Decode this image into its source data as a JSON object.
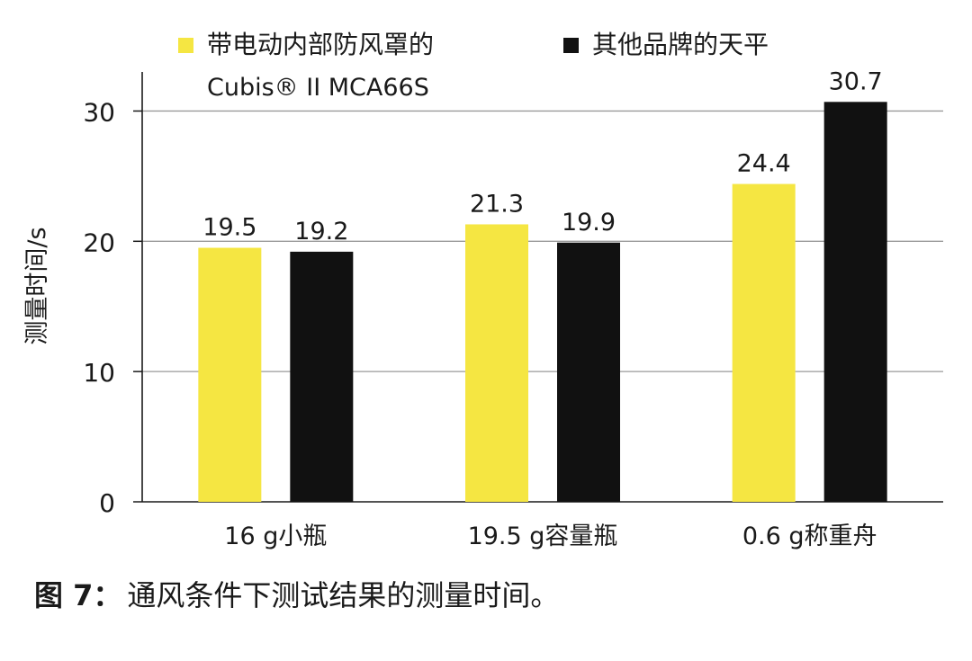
{
  "chart_data": {
    "type": "bar",
    "ylabel": "测量时间/s",
    "xlabel": "",
    "ylim": [
      0,
      33
    ],
    "yticks": [
      0,
      10,
      20,
      30
    ],
    "grid": true,
    "categories": [
      "16 g小瓶",
      "19.5 g容量瓶",
      "0.6 g称重舟"
    ],
    "series": [
      {
        "name": "带电动内部防风罩的",
        "subname": "Cubis® II MCA66S",
        "color": "#f5e642",
        "values": [
          19.5,
          21.3,
          24.4
        ],
        "labels": [
          "19.5",
          "21.3",
          "24.4"
        ]
      },
      {
        "name": "其他品牌的天平",
        "color": "#111111",
        "values": [
          19.2,
          19.9,
          30.7
        ],
        "labels": [
          "19.2",
          "19.9",
          "30.7"
        ]
      }
    ],
    "legend_position": "top"
  },
  "caption": {
    "prefix": "图 7：",
    "text": "通风条件下测试结果的测量时间。"
  },
  "colors": {
    "gridline": "#9a9a9a",
    "axis": "#1a1a1a",
    "text": "#1a1a1a"
  }
}
